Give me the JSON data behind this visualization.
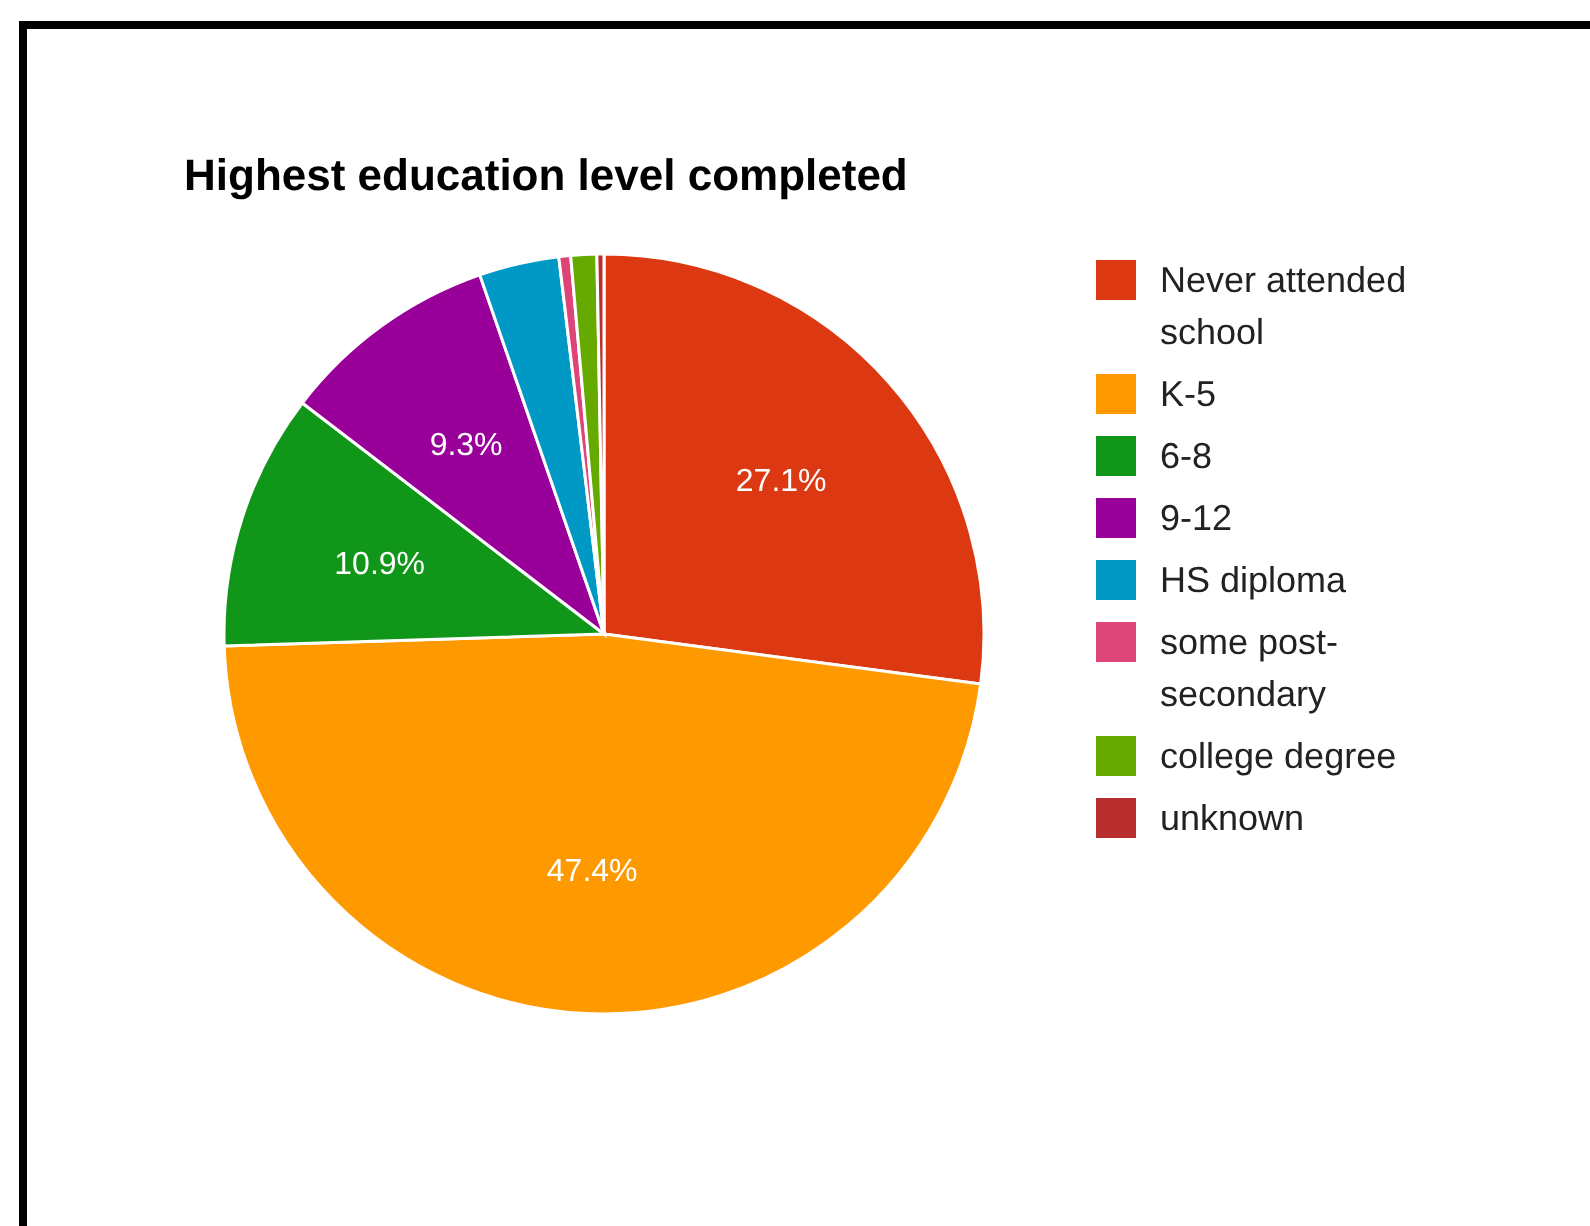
{
  "chart_data": {
    "type": "pie",
    "title": "Highest education level completed",
    "categories": [
      "Never attended school",
      "K-5",
      "6-8",
      "9-12",
      "HS diploma",
      "some post-secondary",
      "college degree",
      "unknown"
    ],
    "values": [
      27.1,
      47.4,
      10.9,
      9.3,
      3.4,
      0.5,
      1.1,
      0.3
    ],
    "colors": [
      "#dc3912",
      "#ff9900",
      "#109618",
      "#990099",
      "#0099c6",
      "#dd4477",
      "#66aa00",
      "#b82e2e"
    ],
    "value_labels": [
      "27.1%",
      "47.4%",
      "10.9%",
      "9.3%",
      null,
      null,
      null,
      null
    ],
    "legend": "right"
  }
}
